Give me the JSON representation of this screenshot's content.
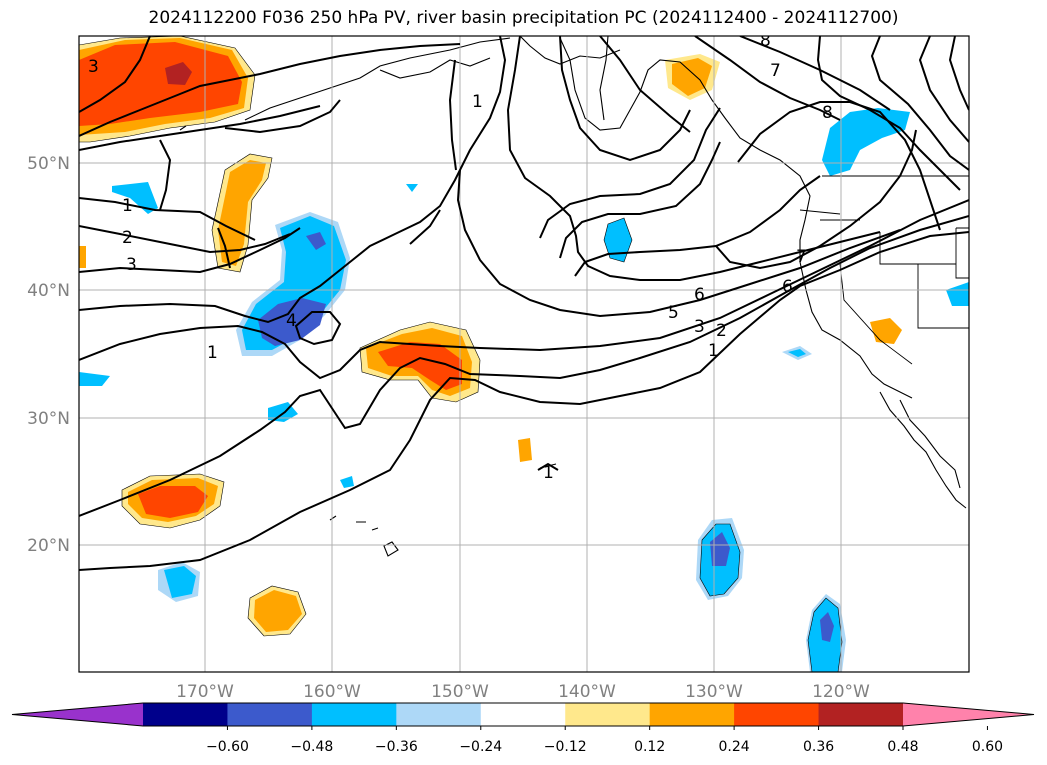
{
  "title": "2024112200 F036 250 hPa PV, river basin precipitation PC (2024112400 - 2024112700)",
  "map": {
    "lon_labels": [
      "170°W",
      "160°W",
      "150°W",
      "140°W",
      "130°W",
      "120°W"
    ],
    "lat_labels": [
      "50°N",
      "40°N",
      "30°N",
      "20°N"
    ],
    "contour_labels": [
      "1",
      "2",
      "3",
      "1",
      "3",
      "4",
      "1",
      "5",
      "6",
      "3",
      "2",
      "1",
      "7",
      "8",
      "7",
      "8",
      "1",
      "6"
    ]
  },
  "colorbar": {
    "ticks": [
      "−0.60",
      "−0.48",
      "−0.36",
      "−0.24",
      "−0.12",
      "0.12",
      "0.24",
      "0.36",
      "0.48",
      "0.60"
    ],
    "colors": [
      "#9932cc",
      "#00008b",
      "#3c5acc",
      "#00bfff",
      "#add8f7",
      "#ffffff",
      "#ffe88c",
      "#ffa500",
      "#ff4500",
      "#b22222",
      "#ff82ab"
    ]
  },
  "colors": {
    "neg_strong": "#3c5acc",
    "neg": "#00bfff",
    "neg_light": "#add8f7",
    "pos_light": "#ffe88c",
    "pos": "#ffa500",
    "pos_strong": "#ff4500",
    "pos_max": "#b22222"
  }
}
